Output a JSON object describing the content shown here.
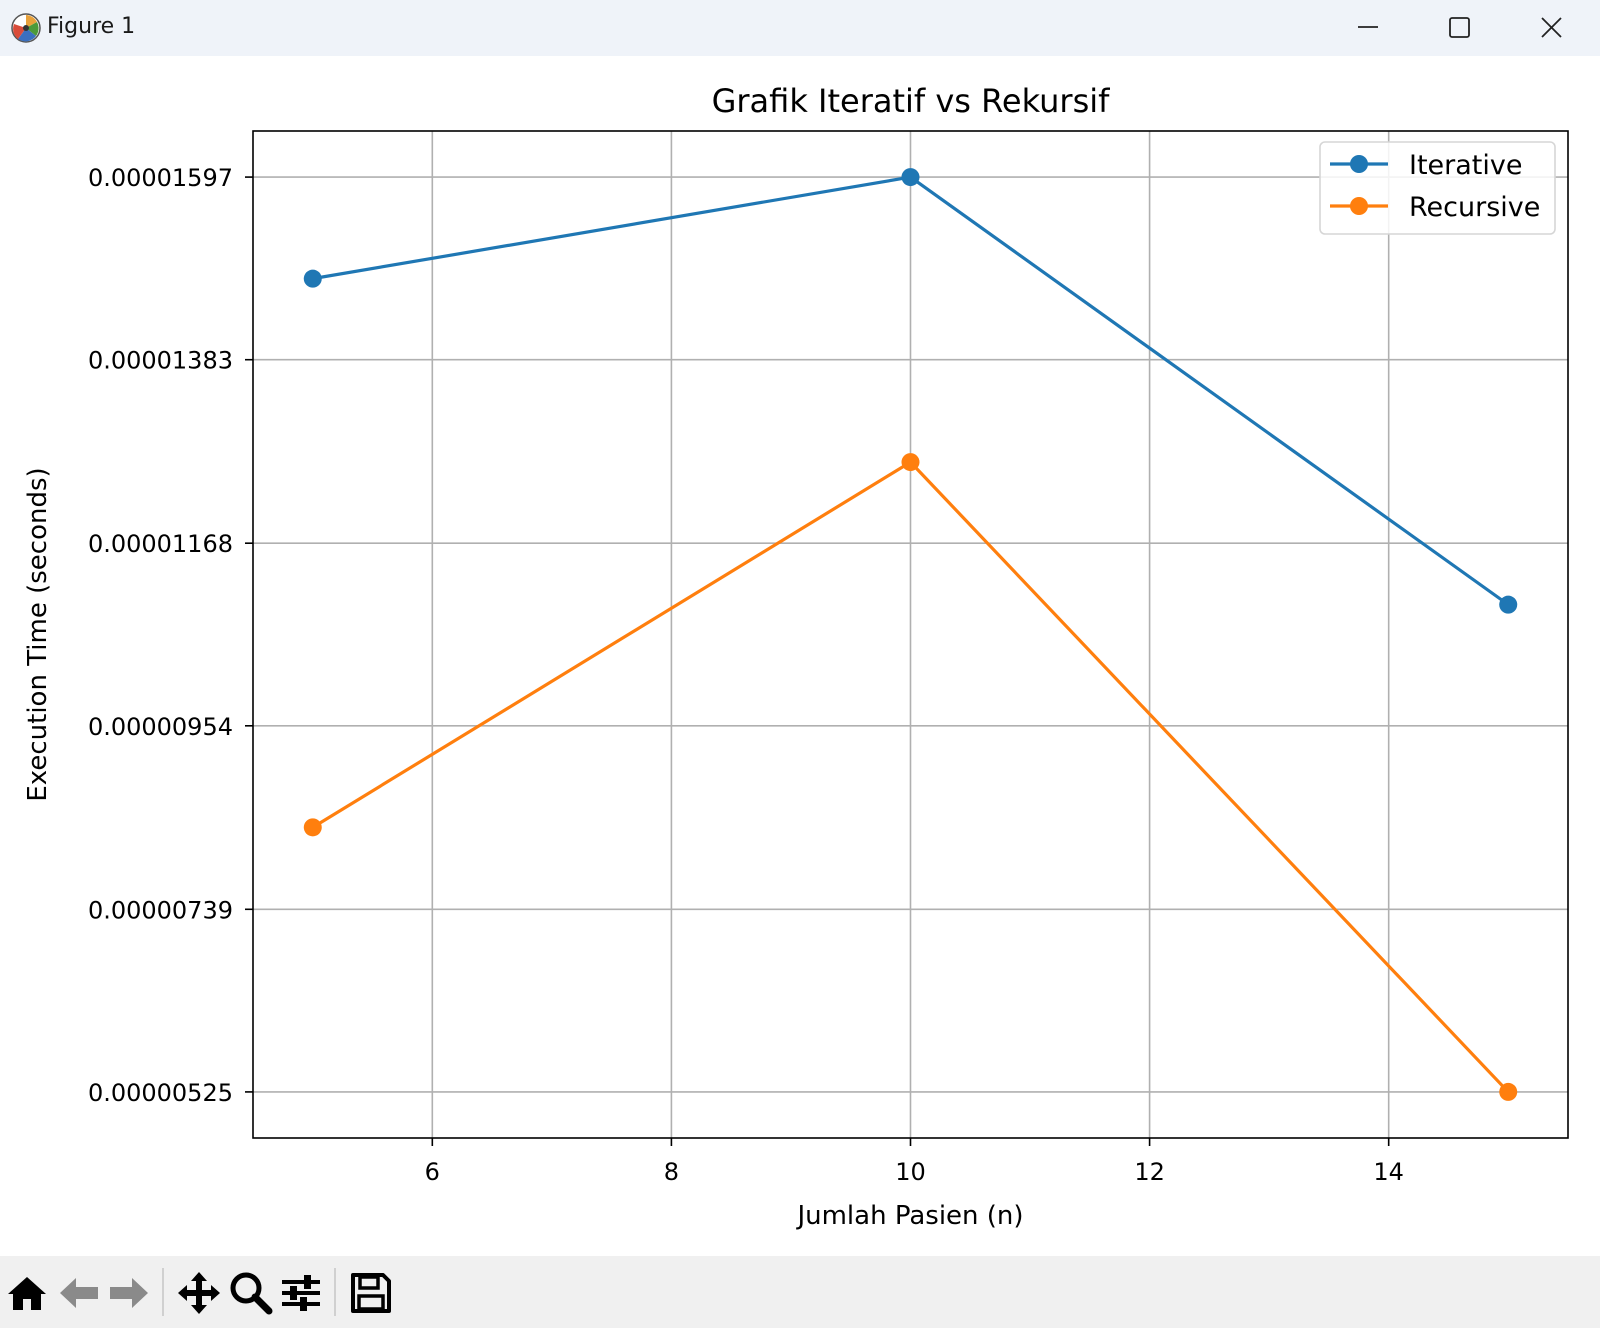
{
  "window": {
    "title": "Figure 1"
  },
  "toolbar": {
    "buttons": [
      "home-icon",
      "back-arrow-icon",
      "forward-arrow-icon",
      "pan-icon",
      "zoom-icon",
      "configure-subplots-icon",
      "save-icon"
    ]
  },
  "chart_data": {
    "type": "line",
    "title": "Grafik Iteratif vs Rekursif",
    "xlabel": "Jumlah Pasien (n)",
    "ylabel": "Execution Time (seconds)",
    "x": [
      5,
      10,
      15
    ],
    "series": [
      {
        "name": "Iterative",
        "color": "#1f77b4",
        "marker": "circle",
        "values": [
          1.478e-05,
          1.597e-05,
          1.096e-05
        ]
      },
      {
        "name": "Recursive",
        "color": "#ff7f0e",
        "marker": "circle",
        "values": [
          8.35e-06,
          1.263e-05,
          5.25e-06
        ]
      }
    ],
    "xticks": [
      6,
      8,
      10,
      12,
      14
    ],
    "xtick_labels": [
      "6",
      "8",
      "10",
      "12",
      "14"
    ],
    "yticks": [
      5.25e-06,
      7.39e-06,
      9.54e-06,
      1.168e-05,
      1.383e-05,
      1.597e-05
    ],
    "ytick_labels": [
      "0.00000525",
      "0.00000739",
      "0.00000954",
      "0.00001168",
      "0.00001383",
      "0.00001597"
    ],
    "xlim": [
      4.5,
      15.5
    ],
    "ylim": [
      4.71e-06,
      1.651e-05
    ],
    "grid": true,
    "legend_position": "upper right"
  }
}
